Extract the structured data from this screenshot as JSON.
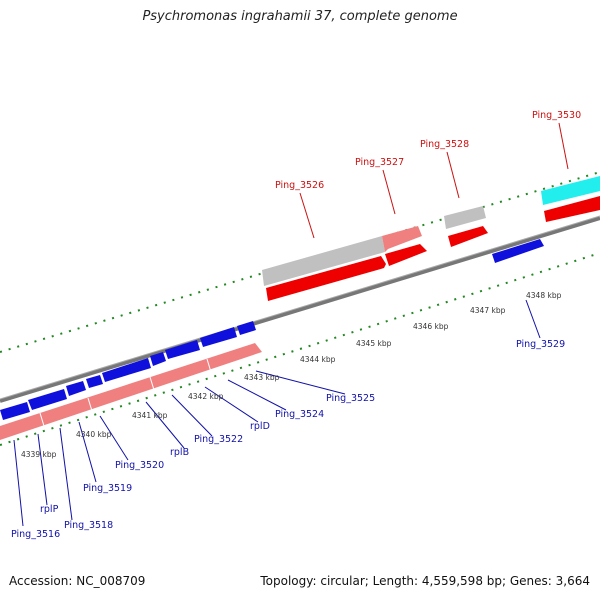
{
  "title": "Psychromonas ingrahamii 37, complete genome",
  "footer": {
    "accession": "Accession: NC_008709",
    "summary": "Topology: circular; Length: 4,559,598 bp; Genes: 3,664"
  },
  "colors": {
    "forward_cds": "#ee0000",
    "forward_cds_light": "#f08080",
    "reverse_cds": "#1010dd",
    "grey_feature": "#c0c0c0",
    "cyan_feature": "#22eeee",
    "backbone": "#888888",
    "ticks": "#228822",
    "red_label": "#cc1111",
    "blue_label": "#1111aa"
  },
  "kbp_ticks": [
    "4339 kbp",
    "4340 kbp",
    "4341 kbp",
    "4342 kbp",
    "4343 kbp",
    "4344 kbp",
    "4345 kbp",
    "4346 kbp",
    "4347 kbp",
    "4348 kbp"
  ],
  "top_labels": [
    "Ping_3526",
    "Ping_3527",
    "Ping_3528",
    "Ping_3530"
  ],
  "bottom_labels": [
    "Ping_3516",
    "rplP",
    "Ping_3518",
    "Ping_3519",
    "Ping_3520",
    "rplB",
    "Ping_3522",
    "rplD",
    "Ping_3524",
    "Ping_3525",
    "Ping_3529"
  ]
}
